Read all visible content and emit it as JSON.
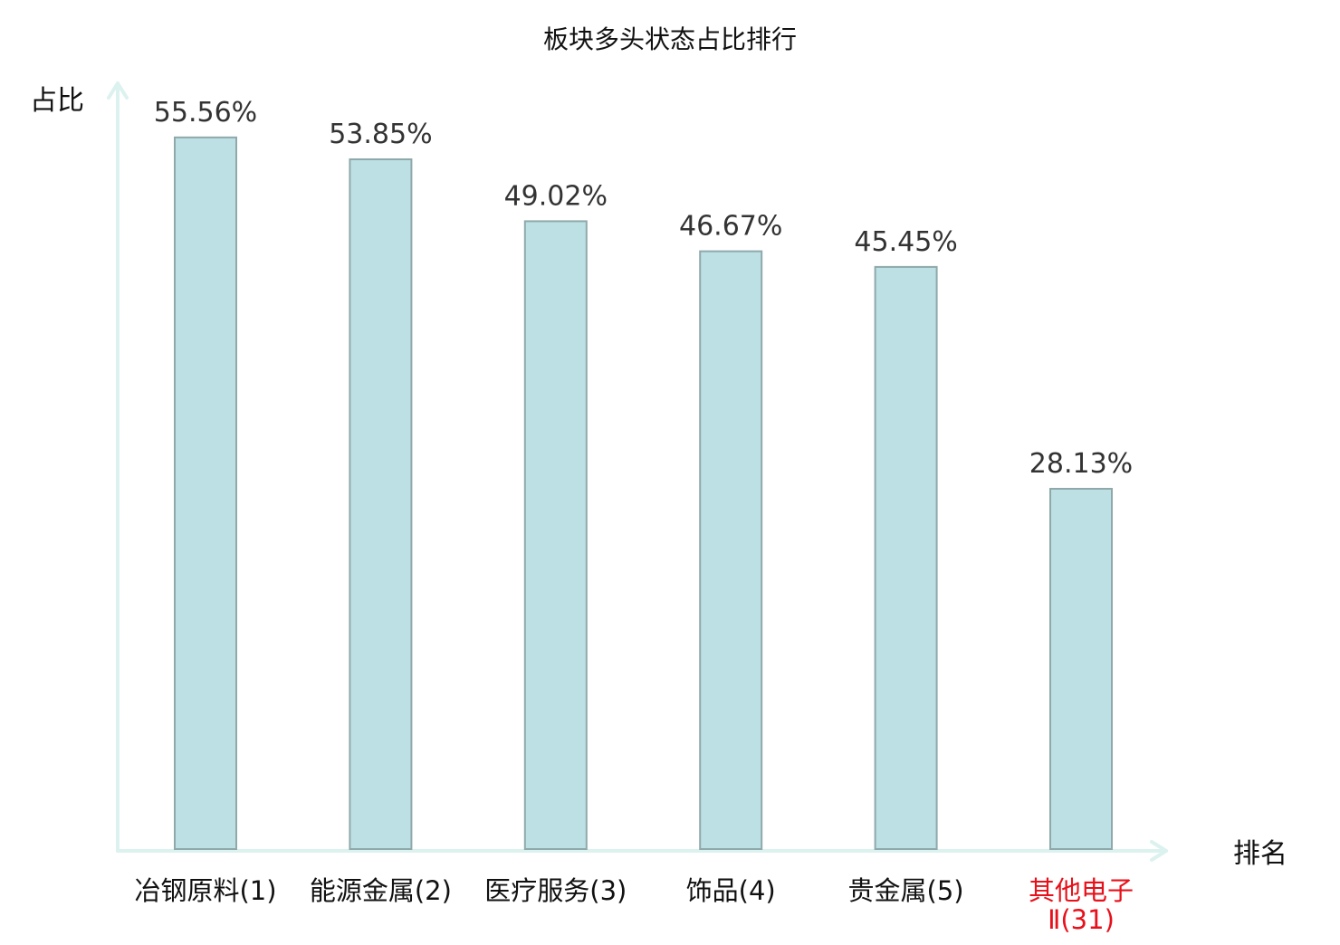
{
  "chart_data": {
    "type": "bar",
    "title": "板块多头状态占比排行",
    "ylabel": "占比",
    "xlabel": "排名",
    "ylim": [
      0,
      60
    ],
    "grid": false,
    "categories": [
      {
        "lines": [
          "冶钢原料(1)"
        ],
        "highlight": false
      },
      {
        "lines": [
          "能源金属(2)"
        ],
        "highlight": false
      },
      {
        "lines": [
          "医疗服务(3)"
        ],
        "highlight": false
      },
      {
        "lines": [
          "饰品(4)"
        ],
        "highlight": false
      },
      {
        "lines": [
          "贵金属(5)"
        ],
        "highlight": false
      },
      {
        "lines": [
          "其他电子",
          "Ⅱ(31)"
        ],
        "highlight": true
      }
    ],
    "values": [
      55.56,
      53.85,
      49.02,
      46.67,
      45.45,
      28.13
    ],
    "value_labels": [
      "55.56%",
      "53.85%",
      "49.02%",
      "46.67%",
      "45.45%",
      "28.13%"
    ]
  },
  "colors": {
    "bar_fill": "#bce0e3",
    "bar_stroke": "#8fa9ab",
    "axis": "#dcf2ef",
    "text": "#111111",
    "value_text": "#333333",
    "highlight_text": "#e8101a"
  }
}
